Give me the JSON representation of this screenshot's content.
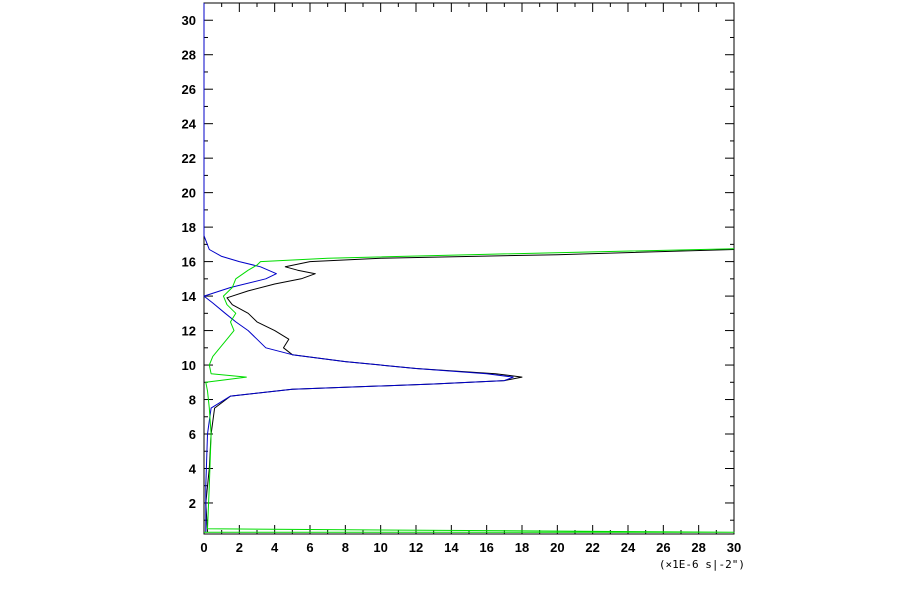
{
  "chart_data": {
    "type": "line",
    "title": "",
    "xlabel": "",
    "ylabel": "",
    "x_unit_label": "(×1E-6 s|-2\")",
    "xlim": [
      0,
      30
    ],
    "ylim": [
      0.2,
      31
    ],
    "x_ticks": [
      0,
      2,
      4,
      6,
      8,
      10,
      12,
      14,
      16,
      18,
      20,
      22,
      24,
      26,
      28,
      30
    ],
    "y_ticks": [
      2,
      4,
      6,
      8,
      10,
      12,
      14,
      16,
      18,
      20,
      22,
      24,
      26,
      28,
      30
    ],
    "grid": false,
    "series": [
      {
        "color": "#000000",
        "points": [
          [
            0.2,
            0.3
          ],
          [
            0.1,
            2
          ],
          [
            0.3,
            4
          ],
          [
            0.4,
            6
          ],
          [
            0.6,
            7.5
          ],
          [
            1.5,
            8.2
          ],
          [
            5,
            8.6
          ],
          [
            13,
            8.9
          ],
          [
            17,
            9.1
          ],
          [
            18,
            9.3
          ],
          [
            16.5,
            9.5
          ],
          [
            12,
            9.8
          ],
          [
            8,
            10.2
          ],
          [
            5,
            10.6
          ],
          [
            4.5,
            11
          ],
          [
            4.8,
            11.5
          ],
          [
            4,
            12
          ],
          [
            3,
            12.5
          ],
          [
            2.5,
            13
          ],
          [
            1.6,
            13.5
          ],
          [
            1.3,
            13.9
          ],
          [
            2.5,
            14.3
          ],
          [
            4,
            14.7
          ],
          [
            5.5,
            15
          ],
          [
            6.3,
            15.3
          ],
          [
            5.3,
            15.5
          ],
          [
            4.6,
            15.7
          ],
          [
            6,
            16
          ],
          [
            10,
            16.2
          ],
          [
            20,
            16.4
          ],
          [
            30,
            16.7
          ]
        ]
      },
      {
        "color": "#0000c8",
        "points": [
          [
            0.1,
            0.3
          ],
          [
            0.1,
            3
          ],
          [
            0.2,
            6
          ],
          [
            0.4,
            7.5
          ],
          [
            1.5,
            8.2
          ],
          [
            5,
            8.6
          ],
          [
            13,
            8.9
          ],
          [
            17,
            9.1
          ],
          [
            17.5,
            9.3
          ],
          [
            16,
            9.5
          ],
          [
            12,
            9.8
          ],
          [
            8,
            10.2
          ],
          [
            5,
            10.6
          ],
          [
            3.5,
            11
          ],
          [
            3,
            11.5
          ],
          [
            2.5,
            12
          ],
          [
            1.8,
            12.5
          ],
          [
            1.2,
            13
          ],
          [
            0.5,
            13.6
          ],
          [
            0,
            14
          ],
          [
            1.5,
            14.5
          ],
          [
            3.5,
            15
          ],
          [
            4.1,
            15.3
          ],
          [
            3.2,
            15.7
          ],
          [
            2,
            16
          ],
          [
            1,
            16.3
          ],
          [
            0.3,
            16.7
          ],
          [
            0,
            17.5
          ],
          [
            0,
            31
          ]
        ]
      },
      {
        "color": "#00dc00",
        "points": [
          [
            0,
            0.3
          ],
          [
            1,
            0.3
          ],
          [
            30,
            0.3
          ],
          [
            0.2,
            0.5
          ],
          [
            0.3,
            3
          ],
          [
            0.4,
            6
          ],
          [
            0.3,
            7.5
          ],
          [
            0.2,
            8.5
          ],
          [
            0.1,
            9
          ],
          [
            2.4,
            9.3
          ],
          [
            0.4,
            9.5
          ],
          [
            0.3,
            10
          ],
          [
            0.5,
            10.5
          ],
          [
            0.9,
            11
          ],
          [
            1.3,
            11.5
          ],
          [
            1.7,
            12
          ],
          [
            1.5,
            12.5
          ],
          [
            1.8,
            13
          ],
          [
            1.3,
            13.5
          ],
          [
            1.1,
            14
          ],
          [
            1.6,
            14.5
          ],
          [
            1.8,
            15
          ],
          [
            2.5,
            15.5
          ],
          [
            3,
            15.8
          ],
          [
            3.2,
            16
          ],
          [
            7,
            16.2
          ],
          [
            15,
            16.4
          ],
          [
            30,
            16.75
          ]
        ]
      }
    ]
  }
}
